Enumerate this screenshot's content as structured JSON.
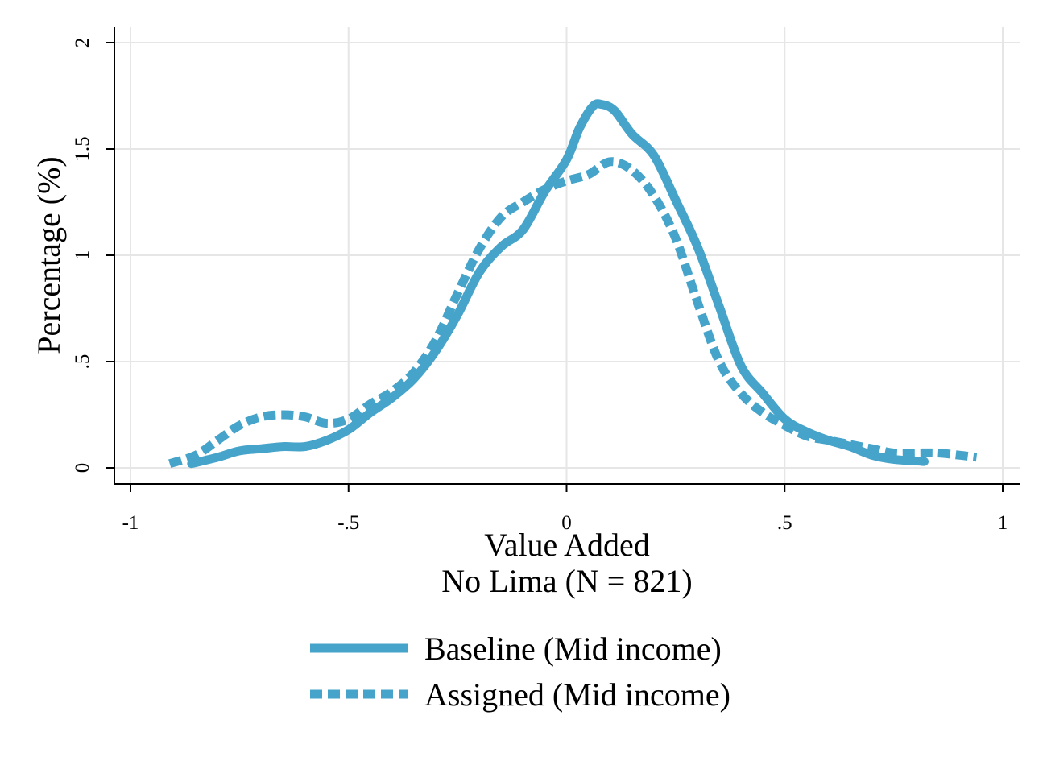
{
  "chart_data": {
    "type": "line",
    "title": "",
    "xlabel": "Value Added",
    "subtitle": "No Lima (N = 821)",
    "ylabel": "Percentage (%)",
    "xlim": [
      -1,
      1
    ],
    "ylim": [
      0,
      2
    ],
    "x_ticks": [
      -1,
      -0.5,
      0,
      0.5,
      1
    ],
    "x_tick_labels": [
      "-1",
      "-.5",
      "0",
      ".5",
      "1"
    ],
    "y_ticks": [
      0,
      0.5,
      1,
      1.5,
      2
    ],
    "y_tick_labels": [
      "0",
      ".5",
      "1",
      "1.5",
      "2"
    ],
    "grid": true,
    "legend_position": "bottom",
    "series": [
      {
        "name": "Baseline (Mid income)",
        "style": "solid",
        "color": "#46a3c9",
        "points": [
          [
            -0.86,
            0.02
          ],
          [
            -0.8,
            0.05
          ],
          [
            -0.75,
            0.08
          ],
          [
            -0.7,
            0.09
          ],
          [
            -0.65,
            0.1
          ],
          [
            -0.6,
            0.1
          ],
          [
            -0.55,
            0.13
          ],
          [
            -0.5,
            0.18
          ],
          [
            -0.45,
            0.26
          ],
          [
            -0.4,
            0.33
          ],
          [
            -0.35,
            0.42
          ],
          [
            -0.3,
            0.55
          ],
          [
            -0.25,
            0.72
          ],
          [
            -0.2,
            0.92
          ],
          [
            -0.15,
            1.04
          ],
          [
            -0.1,
            1.12
          ],
          [
            -0.05,
            1.3
          ],
          [
            0,
            1.45
          ],
          [
            0.03,
            1.6
          ],
          [
            0.06,
            1.7
          ],
          [
            0.08,
            1.71
          ],
          [
            0.11,
            1.68
          ],
          [
            0.15,
            1.57
          ],
          [
            0.2,
            1.47
          ],
          [
            0.25,
            1.26
          ],
          [
            0.3,
            1.04
          ],
          [
            0.35,
            0.76
          ],
          [
            0.4,
            0.48
          ],
          [
            0.45,
            0.35
          ],
          [
            0.5,
            0.23
          ],
          [
            0.55,
            0.17
          ],
          [
            0.6,
            0.13
          ],
          [
            0.65,
            0.1
          ],
          [
            0.7,
            0.06
          ],
          [
            0.75,
            0.04
          ],
          [
            0.82,
            0.03
          ]
        ]
      },
      {
        "name": "Assigned (Mid income)",
        "style": "dashed",
        "color": "#46a3c9",
        "points": [
          [
            -0.91,
            0.02
          ],
          [
            -0.85,
            0.06
          ],
          [
            -0.8,
            0.13
          ],
          [
            -0.75,
            0.2
          ],
          [
            -0.7,
            0.24
          ],
          [
            -0.65,
            0.25
          ],
          [
            -0.6,
            0.24
          ],
          [
            -0.55,
            0.21
          ],
          [
            -0.5,
            0.23
          ],
          [
            -0.45,
            0.3
          ],
          [
            -0.4,
            0.36
          ],
          [
            -0.35,
            0.45
          ],
          [
            -0.3,
            0.6
          ],
          [
            -0.25,
            0.82
          ],
          [
            -0.2,
            1.03
          ],
          [
            -0.15,
            1.18
          ],
          [
            -0.1,
            1.25
          ],
          [
            -0.05,
            1.31
          ],
          [
            0,
            1.35
          ],
          [
            0.05,
            1.38
          ],
          [
            0.1,
            1.44
          ],
          [
            0.15,
            1.4
          ],
          [
            0.2,
            1.28
          ],
          [
            0.25,
            1.08
          ],
          [
            0.3,
            0.78
          ],
          [
            0.35,
            0.5
          ],
          [
            0.4,
            0.35
          ],
          [
            0.45,
            0.26
          ],
          [
            0.5,
            0.2
          ],
          [
            0.55,
            0.15
          ],
          [
            0.6,
            0.13
          ],
          [
            0.65,
            0.11
          ],
          [
            0.7,
            0.09
          ],
          [
            0.75,
            0.07
          ],
          [
            0.8,
            0.07
          ],
          [
            0.85,
            0.07
          ],
          [
            0.9,
            0.06
          ],
          [
            0.94,
            0.05
          ]
        ]
      }
    ]
  }
}
